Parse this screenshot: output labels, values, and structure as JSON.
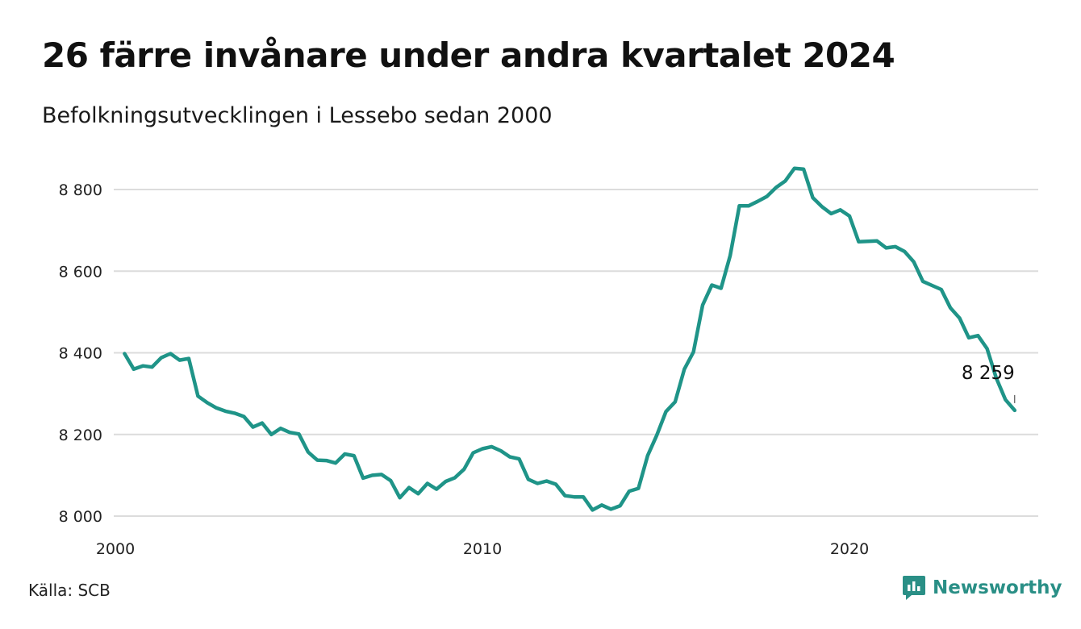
{
  "header": {
    "title": "26 färre invånare under andra kvartalet 2024",
    "subtitle": "Befolkningsutvecklingen i Lessebo sedan 2000"
  },
  "footer": {
    "source": "Källa: SCB",
    "brand": "Newsworthy"
  },
  "colors": {
    "line": "#1f9488",
    "grid": "#dcdcdc",
    "brand": "#2a8f86"
  },
  "chart_data": {
    "type": "line",
    "title": "26 färre invånare under andra kvartalet 2024",
    "subtitle": "Befolkningsutvecklingen i Lessebo sedan 2000",
    "xlabel": "",
    "ylabel": "",
    "ylim": [
      8000,
      8900
    ],
    "yticks": [
      8000,
      8200,
      8400,
      8600,
      8800
    ],
    "ytick_labels": [
      "8 000",
      "8 200",
      "8 400",
      "8 600",
      "8 800"
    ],
    "xticks": [
      2000,
      2010,
      2020
    ],
    "xtick_labels": [
      "2000",
      "2010",
      "2020"
    ],
    "grid": true,
    "end_label": "8 259",
    "series": [
      {
        "x": [
          2000.25,
          2000.5,
          2000.75,
          2001.0,
          2001.25,
          2001.5,
          2001.75,
          2002.0,
          2002.25,
          2002.5,
          2002.75,
          2003.0,
          2003.25,
          2003.5,
          2003.75,
          2004.0,
          2004.25,
          2004.5,
          2004.75,
          2005.0,
          2005.25,
          2005.5,
          2005.75,
          2006.0,
          2006.25,
          2006.5,
          2006.75,
          2007.0,
          2007.25,
          2007.5,
          2007.75,
          2008.0,
          2008.25,
          2008.5,
          2008.75,
          2009.0,
          2009.25,
          2009.5,
          2009.75,
          2010.0,
          2010.25,
          2010.5,
          2010.75,
          2011.0,
          2011.25,
          2011.5,
          2011.75,
          2012.0,
          2012.25,
          2012.5,
          2012.75,
          2013.0,
          2013.25,
          2013.5,
          2013.75,
          2014.0,
          2014.25,
          2014.5,
          2014.75,
          2015.0,
          2015.25,
          2015.5,
          2015.75,
          2016.0,
          2016.25,
          2016.5,
          2016.75,
          2017.0,
          2017.25,
          2017.5,
          2017.75,
          2018.0,
          2018.25,
          2018.5,
          2018.75,
          2019.0,
          2019.25,
          2019.5,
          2019.75,
          2020.0,
          2020.25,
          2020.5,
          2020.75,
          2021.0,
          2021.25,
          2021.5,
          2021.75,
          2022.0,
          2022.25,
          2022.5,
          2022.75,
          2023.0,
          2023.25,
          2023.5,
          2023.75,
          2024.0,
          2024.25,
          2024.5
        ],
        "values": [
          8398,
          8360,
          8368,
          8365,
          8388,
          8398,
          8382,
          8386,
          8294,
          8278,
          8265,
          8257,
          8252,
          8244,
          8218,
          8228,
          8200,
          8215,
          8205,
          8201,
          8157,
          8137,
          8136,
          8130,
          8152,
          8148,
          8093,
          8100,
          8102,
          8087,
          8045,
          8070,
          8055,
          8080,
          8066,
          8085,
          8094,
          8115,
          8155,
          8165,
          8170,
          8160,
          8145,
          8140,
          8090,
          8080,
          8086,
          8078,
          8050,
          8047,
          8047,
          8015,
          8027,
          8017,
          8025,
          8061,
          8068,
          8148,
          8198,
          8256,
          8280,
          8360,
          8402,
          8517,
          8566,
          8558,
          8638,
          8760,
          8760,
          8771,
          8783,
          8805,
          8821,
          8852,
          8850,
          8780,
          8758,
          8741,
          8750,
          8735,
          8672,
          8673,
          8674,
          8657,
          8660,
          8648,
          8623,
          8575,
          8565,
          8555,
          8510,
          8485,
          8437,
          8442,
          8410,
          8338,
          8285,
          8259
        ]
      }
    ]
  }
}
